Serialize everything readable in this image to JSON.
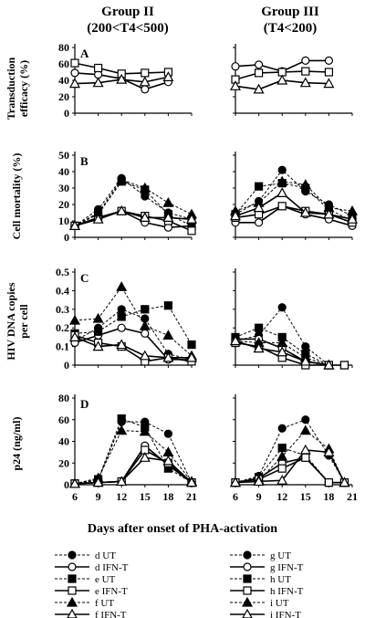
{
  "figure": {
    "group_titles": [
      {
        "line1": "Group II",
        "line2": "(200<T4<500)"
      },
      {
        "line1": "Group III",
        "line2": "(T4<200)"
      }
    ],
    "x_axis_title": "Days after onset of PHA-activation",
    "x_ticks": [
      6,
      9,
      12,
      15,
      18,
      21
    ]
  },
  "legend": [
    {
      "label": "d UT",
      "marker": "circle",
      "fill": "filled"
    },
    {
      "label": "d IFN-T",
      "marker": "circle",
      "fill": "open"
    },
    {
      "label": "e UT",
      "marker": "square",
      "fill": "filled"
    },
    {
      "label": "e IFN-T",
      "marker": "square",
      "fill": "open"
    },
    {
      "label": "f UT",
      "marker": "triangle",
      "fill": "filled"
    },
    {
      "label": "f IFN-T",
      "marker": "triangle",
      "fill": "open"
    },
    {
      "label": "g UT",
      "marker": "circle",
      "fill": "filled"
    },
    {
      "label": "g IFN-T",
      "marker": "circle",
      "fill": "open"
    },
    {
      "label": "h UT",
      "marker": "square",
      "fill": "filled"
    },
    {
      "label": "h IFN-T",
      "marker": "square",
      "fill": "open"
    },
    {
      "label": "i UT",
      "marker": "triangle",
      "fill": "filled"
    },
    {
      "label": "i IFN-T",
      "marker": "triangle",
      "fill": "open"
    }
  ],
  "chart_data": [
    {
      "type": "line",
      "panel": "A",
      "group": "Group II",
      "ylabel": "Transduction efficacy (%)",
      "ylim": [
        0,
        80
      ],
      "yticks": [
        0,
        20,
        40,
        60,
        80
      ],
      "xlim": [
        6,
        21
      ],
      "series": [
        {
          "name": "d IFN-T",
          "marker": "circle",
          "fill": "open",
          "x": [
            6,
            9,
            12,
            15,
            18
          ],
          "y": [
            49,
            47,
            42,
            29,
            38
          ]
        },
        {
          "name": "e IFN-T",
          "marker": "square",
          "fill": "open",
          "x": [
            6,
            9,
            12,
            15,
            18
          ],
          "y": [
            61,
            55,
            48,
            49,
            50
          ]
        },
        {
          "name": "f IFN-T",
          "marker": "triangle",
          "fill": "open",
          "x": [
            6,
            9,
            12,
            15,
            18
          ],
          "y": [
            36,
            37,
            41,
            38,
            44
          ]
        }
      ]
    },
    {
      "type": "line",
      "panel": "A",
      "group": "Group III",
      "ylabel": "",
      "ylim": [
        0,
        80
      ],
      "yticks": [
        0,
        20,
        40,
        60,
        80
      ],
      "xlim": [
        6,
        21
      ],
      "series": [
        {
          "name": "g IFN-T",
          "marker": "circle",
          "fill": "open",
          "x": [
            6,
            9,
            12,
            15,
            18
          ],
          "y": [
            57,
            59,
            51,
            64,
            64
          ]
        },
        {
          "name": "h IFN-T",
          "marker": "square",
          "fill": "open",
          "x": [
            6,
            9,
            12,
            15,
            18
          ],
          "y": [
            41,
            49,
            50,
            51,
            50
          ]
        },
        {
          "name": "i IFN-T",
          "marker": "triangle",
          "fill": "open",
          "x": [
            6,
            9,
            12,
            15,
            18
          ],
          "y": [
            33,
            29,
            40,
            37,
            36
          ]
        }
      ]
    },
    {
      "type": "line",
      "panel": "B",
      "group": "Group II",
      "ylabel": "Cell mortality (%)",
      "ylim": [
        0,
        50
      ],
      "yticks": [
        0,
        10,
        20,
        30,
        40,
        50
      ],
      "xlim": [
        6,
        21
      ],
      "series": [
        {
          "name": "d UT",
          "marker": "circle",
          "fill": "filled",
          "x": [
            6,
            9,
            12,
            15,
            18,
            21
          ],
          "y": [
            7,
            17,
            36,
            25,
            15,
            11
          ]
        },
        {
          "name": "d IFN-T",
          "marker": "circle",
          "fill": "open",
          "x": [
            6,
            9,
            12,
            15,
            18,
            21
          ],
          "y": [
            7,
            12,
            16,
            9,
            6,
            7
          ]
        },
        {
          "name": "e UT",
          "marker": "square",
          "fill": "filled",
          "x": [
            6,
            9,
            12,
            15,
            18,
            21
          ],
          "y": [
            7,
            14,
            34,
            29,
            14,
            7
          ]
        },
        {
          "name": "e IFN-T",
          "marker": "square",
          "fill": "open",
          "x": [
            6,
            9,
            12,
            15,
            18,
            21
          ],
          "y": [
            7,
            12,
            16,
            13,
            10,
            4
          ]
        },
        {
          "name": "f UT",
          "marker": "triangle",
          "fill": "filled",
          "x": [
            6,
            9,
            12,
            15,
            18,
            21
          ],
          "y": [
            7,
            15,
            35,
            30,
            21,
            14
          ]
        },
        {
          "name": "f IFN-T",
          "marker": "triangle",
          "fill": "open",
          "x": [
            6,
            9,
            12,
            15,
            18,
            21
          ],
          "y": [
            7,
            11,
            16,
            12,
            12,
            11
          ]
        }
      ]
    },
    {
      "type": "line",
      "panel": "B",
      "group": "Group III",
      "ylabel": "",
      "ylim": [
        0,
        50
      ],
      "yticks": [
        0,
        10,
        20,
        30,
        40,
        50
      ],
      "xlim": [
        6,
        21
      ],
      "series": [
        {
          "name": "g UT",
          "marker": "circle",
          "fill": "filled",
          "x": [
            6,
            9,
            12,
            15,
            18,
            21
          ],
          "y": [
            14,
            22,
            41,
            28,
            20,
            13
          ]
        },
        {
          "name": "g IFN-T",
          "marker": "circle",
          "fill": "open",
          "x": [
            6,
            9,
            12,
            15,
            18,
            21
          ],
          "y": [
            9,
            9,
            19,
            14,
            11,
            7
          ]
        },
        {
          "name": "h UT",
          "marker": "square",
          "fill": "filled",
          "x": [
            6,
            9,
            12,
            15,
            18,
            21
          ],
          "y": [
            14,
            31,
            33,
            30,
            17,
            10
          ]
        },
        {
          "name": "h IFN-T",
          "marker": "square",
          "fill": "open",
          "x": [
            6,
            9,
            12,
            15,
            18,
            21
          ],
          "y": [
            12,
            14,
            19,
            16,
            14,
            9
          ]
        },
        {
          "name": "i UT",
          "marker": "triangle",
          "fill": "filled",
          "x": [
            6,
            9,
            12,
            15,
            18,
            21
          ],
          "y": [
            16,
            21,
            34,
            32,
            18,
            16
          ]
        },
        {
          "name": "i IFN-T",
          "marker": "triangle",
          "fill": "open",
          "x": [
            6,
            9,
            12,
            15,
            18,
            21
          ],
          "y": [
            13,
            18,
            27,
            15,
            14,
            11
          ]
        }
      ]
    },
    {
      "type": "line",
      "panel": "C",
      "group": "Group II",
      "ylabel": "HIV DNA copies per cell",
      "ylim": [
        0,
        0.5
      ],
      "yticks": [
        0,
        0.1,
        0.2,
        0.3,
        0.4,
        0.5
      ],
      "xlim": [
        6,
        21
      ],
      "series": [
        {
          "name": "d UT",
          "marker": "circle",
          "fill": "filled",
          "x": [
            6,
            9,
            12,
            15,
            18,
            21
          ],
          "y": [
            0.13,
            0.2,
            0.3,
            0.25,
            0.06,
            0.03
          ]
        },
        {
          "name": "d IFN-T",
          "marker": "circle",
          "fill": "open",
          "x": [
            6,
            9,
            12,
            15,
            18,
            21
          ],
          "y": [
            0.12,
            0.16,
            0.2,
            0.17,
            0.03,
            0.03
          ]
        },
        {
          "name": "e UT",
          "marker": "square",
          "fill": "filled",
          "x": [
            6,
            9,
            12,
            15,
            18,
            21
          ],
          "y": [
            0.17,
            0.18,
            0.26,
            0.3,
            0.32,
            0.11
          ]
        },
        {
          "name": "e IFN-T",
          "marker": "square",
          "fill": "open",
          "x": [
            6,
            9,
            12,
            15,
            18,
            21
          ],
          "y": [
            0.16,
            0.12,
            0.1,
            0.02,
            0.04,
            0.02
          ]
        },
        {
          "name": "f UT",
          "marker": "triangle",
          "fill": "filled",
          "x": [
            6,
            9,
            12,
            15,
            18,
            21
          ],
          "y": [
            0.24,
            0.25,
            0.42,
            0.21,
            0.16,
            0.05
          ]
        },
        {
          "name": "f IFN-T",
          "marker": "triangle",
          "fill": "open",
          "x": [
            6,
            9,
            12,
            15,
            18,
            21
          ],
          "y": [
            0.15,
            0.1,
            0.11,
            0.05,
            0.04,
            0.04
          ]
        }
      ]
    },
    {
      "type": "line",
      "panel": "C",
      "group": "Group III",
      "ylabel": "",
      "ylim": [
        0,
        0.5
      ],
      "yticks": [
        0,
        0.1,
        0.2,
        0.3,
        0.4,
        0.5
      ],
      "xlim": [
        6,
        21
      ],
      "series": [
        {
          "name": "g UT",
          "marker": "circle",
          "fill": "filled",
          "x": [
            6,
            9,
            12,
            15,
            18
          ],
          "y": [
            0.13,
            0.16,
            0.31,
            0.1,
            0.0
          ]
        },
        {
          "name": "g IFN-T",
          "marker": "circle",
          "fill": "open",
          "x": [
            6,
            9,
            12,
            15,
            18
          ],
          "y": [
            0.14,
            0.14,
            0.09,
            0.02,
            0.0
          ]
        },
        {
          "name": "h UT",
          "marker": "square",
          "fill": "filled",
          "x": [
            6,
            9,
            12,
            15,
            18,
            20
          ],
          "y": [
            0.15,
            0.2,
            0.15,
            0.06,
            0.0,
            0.0
          ]
        },
        {
          "name": "h IFN-T",
          "marker": "square",
          "fill": "open",
          "x": [
            6,
            9,
            12,
            15,
            18,
            20
          ],
          "y": [
            0.12,
            0.1,
            0.04,
            0.0,
            0.0,
            0.0
          ]
        },
        {
          "name": "i UT",
          "marker": "triangle",
          "fill": "filled",
          "x": [
            6,
            9,
            12,
            15,
            18
          ],
          "y": [
            0.13,
            0.12,
            0.12,
            0.04,
            0.0
          ]
        },
        {
          "name": "i IFN-T",
          "marker": "triangle",
          "fill": "open",
          "x": [
            6,
            9,
            12,
            15,
            18
          ],
          "y": [
            0.13,
            0.09,
            0.07,
            0.02,
            0.0
          ]
        }
      ]
    },
    {
      "type": "line",
      "panel": "D",
      "group": "Group II",
      "ylabel": "p24 (ng/ml)",
      "ylim": [
        0,
        80
      ],
      "yticks": [
        0,
        20,
        40,
        60,
        80
      ],
      "xlim": [
        6,
        21
      ],
      "series": [
        {
          "name": "d UT",
          "marker": "circle",
          "fill": "filled",
          "x": [
            6,
            9,
            12,
            15,
            18,
            21
          ],
          "y": [
            1,
            4,
            58,
            58,
            47,
            2
          ]
        },
        {
          "name": "d IFN-T",
          "marker": "circle",
          "fill": "open",
          "x": [
            6,
            9,
            12,
            15,
            18,
            21
          ],
          "y": [
            1,
            2,
            3,
            36,
            18,
            2
          ]
        },
        {
          "name": "e UT",
          "marker": "square",
          "fill": "filled",
          "x": [
            6,
            9,
            12,
            15,
            18,
            21
          ],
          "y": [
            1,
            5,
            61,
            53,
            15,
            2
          ]
        },
        {
          "name": "e IFN-T",
          "marker": "square",
          "fill": "open",
          "x": [
            6,
            9,
            12,
            15,
            18,
            21
          ],
          "y": [
            1,
            2,
            3,
            32,
            20,
            2
          ]
        },
        {
          "name": "f UT",
          "marker": "triangle",
          "fill": "filled",
          "x": [
            6,
            9,
            12,
            15,
            18,
            21
          ],
          "y": [
            1,
            6,
            50,
            49,
            30,
            3
          ]
        },
        {
          "name": "f IFN-T",
          "marker": "triangle",
          "fill": "open",
          "x": [
            6,
            9,
            12,
            15,
            18,
            21
          ],
          "y": [
            1,
            2,
            3,
            25,
            22,
            2
          ]
        }
      ]
    },
    {
      "type": "line",
      "panel": "D",
      "group": "Group III",
      "ylabel": "",
      "ylim": [
        0,
        80
      ],
      "yticks": [
        0,
        20,
        40,
        60,
        80
      ],
      "xlim": [
        6,
        21
      ],
      "series": [
        {
          "name": "g UT",
          "marker": "circle",
          "fill": "filled",
          "x": [
            6,
            9,
            12,
            15,
            18,
            20
          ],
          "y": [
            2,
            8,
            52,
            60,
            27,
            2
          ]
        },
        {
          "name": "g IFN-T",
          "marker": "circle",
          "fill": "open",
          "x": [
            6,
            9,
            12,
            15,
            18,
            20
          ],
          "y": [
            2,
            6,
            20,
            25,
            2,
            2
          ]
        },
        {
          "name": "h UT",
          "marker": "square",
          "fill": "filled",
          "x": [
            6,
            9,
            12,
            15,
            18,
            20
          ],
          "y": [
            2,
            7,
            34,
            27,
            2,
            2
          ]
        },
        {
          "name": "h IFN-T",
          "marker": "square",
          "fill": "open",
          "x": [
            6,
            9,
            12,
            15,
            18,
            20
          ],
          "y": [
            2,
            5,
            15,
            25,
            2,
            2
          ]
        },
        {
          "name": "i UT",
          "marker": "triangle",
          "fill": "filled",
          "x": [
            6,
            9,
            12,
            15,
            18,
            20
          ],
          "y": [
            2,
            4,
            26,
            50,
            33,
            2
          ]
        },
        {
          "name": "i IFN-T",
          "marker": "triangle",
          "fill": "open",
          "x": [
            6,
            9,
            12,
            15,
            18,
            20
          ],
          "y": [
            2,
            3,
            4,
            32,
            30,
            2
          ]
        }
      ]
    }
  ]
}
